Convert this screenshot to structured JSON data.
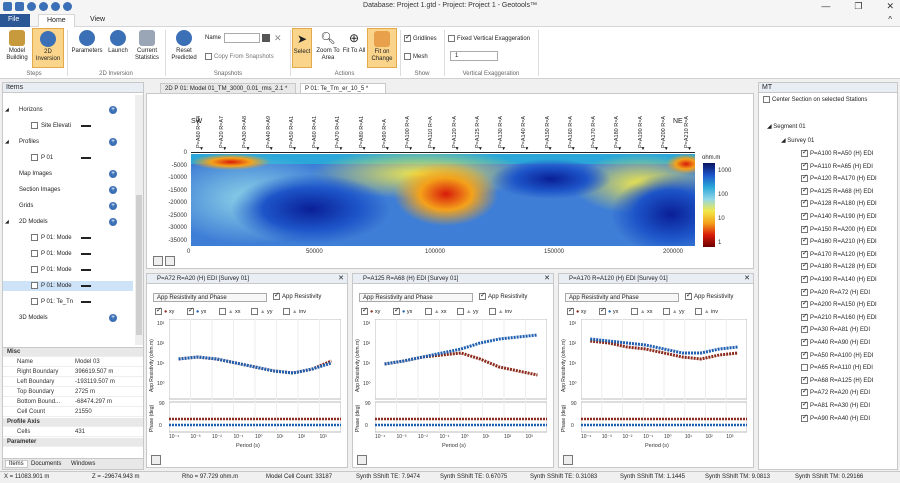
{
  "window": {
    "title": "Database: Project 1.gtd - Project: Project 1 - Geotools™",
    "controls": {
      "minimize": "—",
      "restore": "❐",
      "close": "✕",
      "collapse": "^"
    }
  },
  "ribbon": {
    "tabs": [
      "File",
      "Home",
      "View"
    ],
    "groups": {
      "steps": {
        "label": "Steps",
        "model_building": "Model Building",
        "inversion_2d": "2D Inversion"
      },
      "inversion": {
        "label": "2D Inversion",
        "parameters": "Parameters",
        "launch": "Launch",
        "current_statistics": "Current Statistics"
      },
      "snapshots": {
        "label": "Snapshots",
        "reset_predicted": "Reset Predicted",
        "name_label": "Name",
        "name_value": "",
        "copy_from_snapshots": "Copy From Snapshots"
      },
      "actions": {
        "label": "Actions",
        "select": "Select",
        "zoom_to_area": "Zoom To Area",
        "fit_to_all": "Fit To All",
        "fit_on_change": "Fit on Change"
      },
      "show": {
        "label": "Show",
        "gridlines": "Gridlines",
        "gridlines_checked": true,
        "mesh": "Mesh",
        "mesh_checked": false
      },
      "vertical_exaggeration": {
        "label": "Vertical Exaggeration",
        "fixed_label": "Fixed Vertical Exaggeration",
        "fixed_checked": false,
        "value": "1"
      }
    }
  },
  "items_panel": {
    "title": "Items",
    "tree": [
      {
        "label": "Horizons",
        "expanded": true
      },
      {
        "label": "Site Elevati",
        "child": true
      },
      {
        "label": "Profiles",
        "expanded": true
      },
      {
        "label": "P 01",
        "child": true
      },
      {
        "label": "Map Images"
      },
      {
        "label": "Section Images"
      },
      {
        "label": "Grids"
      },
      {
        "label": "2D Models",
        "expanded": true
      },
      {
        "label": "P 01: Mode",
        "child": true
      },
      {
        "label": "P 01: Mode",
        "child": true
      },
      {
        "label": "P 01: Mode",
        "child": true
      },
      {
        "label": "P 01: Mode",
        "child": true,
        "selected": true
      },
      {
        "label": "P 01: Te_Tn",
        "child": true
      },
      {
        "label": "3D Models"
      }
    ],
    "properties": {
      "misc_header": "Misc",
      "rows": [
        {
          "k": "Name",
          "v": "Model 03"
        },
        {
          "k": "Right Boundary",
          "v": "396619.507 m"
        },
        {
          "k": "Left Boundary",
          "v": "-193119.507 m"
        },
        {
          "k": "Top Boundary",
          "v": "2725 m"
        },
        {
          "k": "Bottom Bound...",
          "v": "-68474.297 m"
        },
        {
          "k": "Cell Count",
          "v": "21550"
        }
      ],
      "profile_axis_header": "Profile Axis",
      "profile_rows": [
        {
          "k": "Cells",
          "v": "431"
        }
      ],
      "next_header": "Parameter"
    },
    "bottom_tabs": [
      "Items",
      "Documents",
      "Windows"
    ]
  },
  "doc_tabs": [
    {
      "label": "2D P 01: Model 01_TM_3000_0.01_rms_2.1 *",
      "active": false
    },
    {
      "label": "P 01: Te_Tm_er_10_5 *",
      "active": true
    }
  ],
  "section": {
    "direction_left": "SW",
    "direction_right": "NE",
    "stations": [
      "P=A60 R=A4",
      "P=A20 R=A7",
      "P=A30 R=A8",
      "P=A40 R=A9",
      "P=A50 R=A1",
      "P=A60 R=A1",
      "P=A70 R=A1",
      "P=A80 R=A1",
      "P=A90 R=A",
      "P=A100 R=A",
      "P=A110 R=A",
      "P=A120 R=A",
      "P=A125 R=A",
      "P=A130 R=A",
      "P=A140 R=A",
      "P=A150 R=A",
      "P=A160 R=A",
      "P=A170 R=A",
      "P=A180 R=A",
      "P=A190 R=A",
      "P=A200 R=A",
      "P=A210 R=A"
    ],
    "y_ticks": [
      "0",
      "-5000",
      "-10000",
      "-15000",
      "-20000",
      "-25000",
      "-30000",
      "-35000"
    ],
    "x_ticks": [
      "0",
      "50000",
      "100000",
      "150000",
      "200000"
    ],
    "colorbar_title": "ohm.m",
    "colorbar_ticks": [
      "1000",
      "100",
      "10",
      "1"
    ]
  },
  "subplots": [
    {
      "title": "P=A72 R=A20 (H) EDI [Survey 01]"
    },
    {
      "title": "P=A125 R=A68 (H) EDI [Survey 01]"
    },
    {
      "title": "P=A170 R=A120 (H) EDI [Survey 01]"
    }
  ],
  "subplot_common": {
    "dropdown": "App Resistivity and Phase",
    "app_resistivity_label": "App Resistivity",
    "legend": [
      "xy",
      "yx",
      "xx",
      "yy",
      "inv"
    ],
    "ylabel_top": "App Resistivity (ohm.m)",
    "ylabel_bottom": "Phase (deg)",
    "xlabel": "Period (s)",
    "y_ticks_top": [
      "10³",
      "10²",
      "10¹",
      "10⁰"
    ],
    "phase_ticks": [
      "90",
      "0"
    ],
    "x_ticks": [
      "10⁻⁴",
      "10⁻³",
      "10⁻²",
      "10⁻¹",
      "10⁰",
      "10¹",
      "10²",
      "10³"
    ]
  },
  "mt_panel": {
    "title": "MT",
    "center_label": "Center Section on selected Stations",
    "segment": "Segment 01",
    "survey": "Survey 01",
    "stations": [
      {
        "label": "P=A100 R=A50 (H) EDI",
        "checked": true
      },
      {
        "label": "P=A110 R=A65 (H) EDI",
        "checked": true
      },
      {
        "label": "P=A120 R=A170 (H) EDI",
        "checked": true
      },
      {
        "label": "P=A125 R=A68 (H) EDI",
        "checked": true
      },
      {
        "label": "P=A128 R=A180 (H) EDI",
        "checked": true
      },
      {
        "label": "P=A140 R=A190 (H) EDI",
        "checked": true
      },
      {
        "label": "P=A150 R=A200 (H) EDI",
        "checked": true
      },
      {
        "label": "P=A160 R=A210 (H) EDI",
        "checked": true
      },
      {
        "label": "P=A170 R=A120 (H) EDI",
        "checked": true
      },
      {
        "label": "P=A180 R=A128 (H) EDI",
        "checked": true
      },
      {
        "label": "P=A190 R=A140 (H) EDI",
        "checked": true
      },
      {
        "label": "P=A20 R=A72 (H) EDI",
        "checked": true
      },
      {
        "label": "P=A200 R=A150 (H) EDI",
        "checked": true
      },
      {
        "label": "P=A210 R=A160 (H) EDI",
        "checked": true
      },
      {
        "label": "P=A30 R=A81 (H) EDI",
        "checked": true
      },
      {
        "label": "P=A40 R=A90 (H) EDI",
        "checked": true
      },
      {
        "label": "P=A50 R=A100 (H) EDI",
        "checked": true
      },
      {
        "label": "P=A65 R=A110 (H) EDI",
        "checked": false
      },
      {
        "label": "P=A68 R=A125 (H) EDI",
        "checked": true
      },
      {
        "label": "P=A72 R=A20 (H) EDI",
        "checked": true
      },
      {
        "label": "P=A81 R=A30 (H) EDI",
        "checked": true
      },
      {
        "label": "P=A90 R=A40 (H) EDI",
        "checked": true
      }
    ]
  },
  "status": {
    "x": "X = 11083.901 m",
    "z": "Z = -29674.943 m",
    "rho": "Rho = 97.729 ohm.m",
    "cells": "Model Cell Count: 33187",
    "te": "Synth SShift TE: 7.9474",
    "te2": "Synth SShift TE: 0.67075",
    "te3": "Synth SShift TE: 0.31083",
    "tm": "Synth SShift TM: 1.1445",
    "tm2": "Synth SShift TM: 9.0813",
    "tm3": "Synth SShift TM: 0.29166"
  },
  "colors": {
    "accent": "#2b5797",
    "icon": "#3b6fb6",
    "xy": "#8b2a1c",
    "yx": "#1f5fb0"
  }
}
